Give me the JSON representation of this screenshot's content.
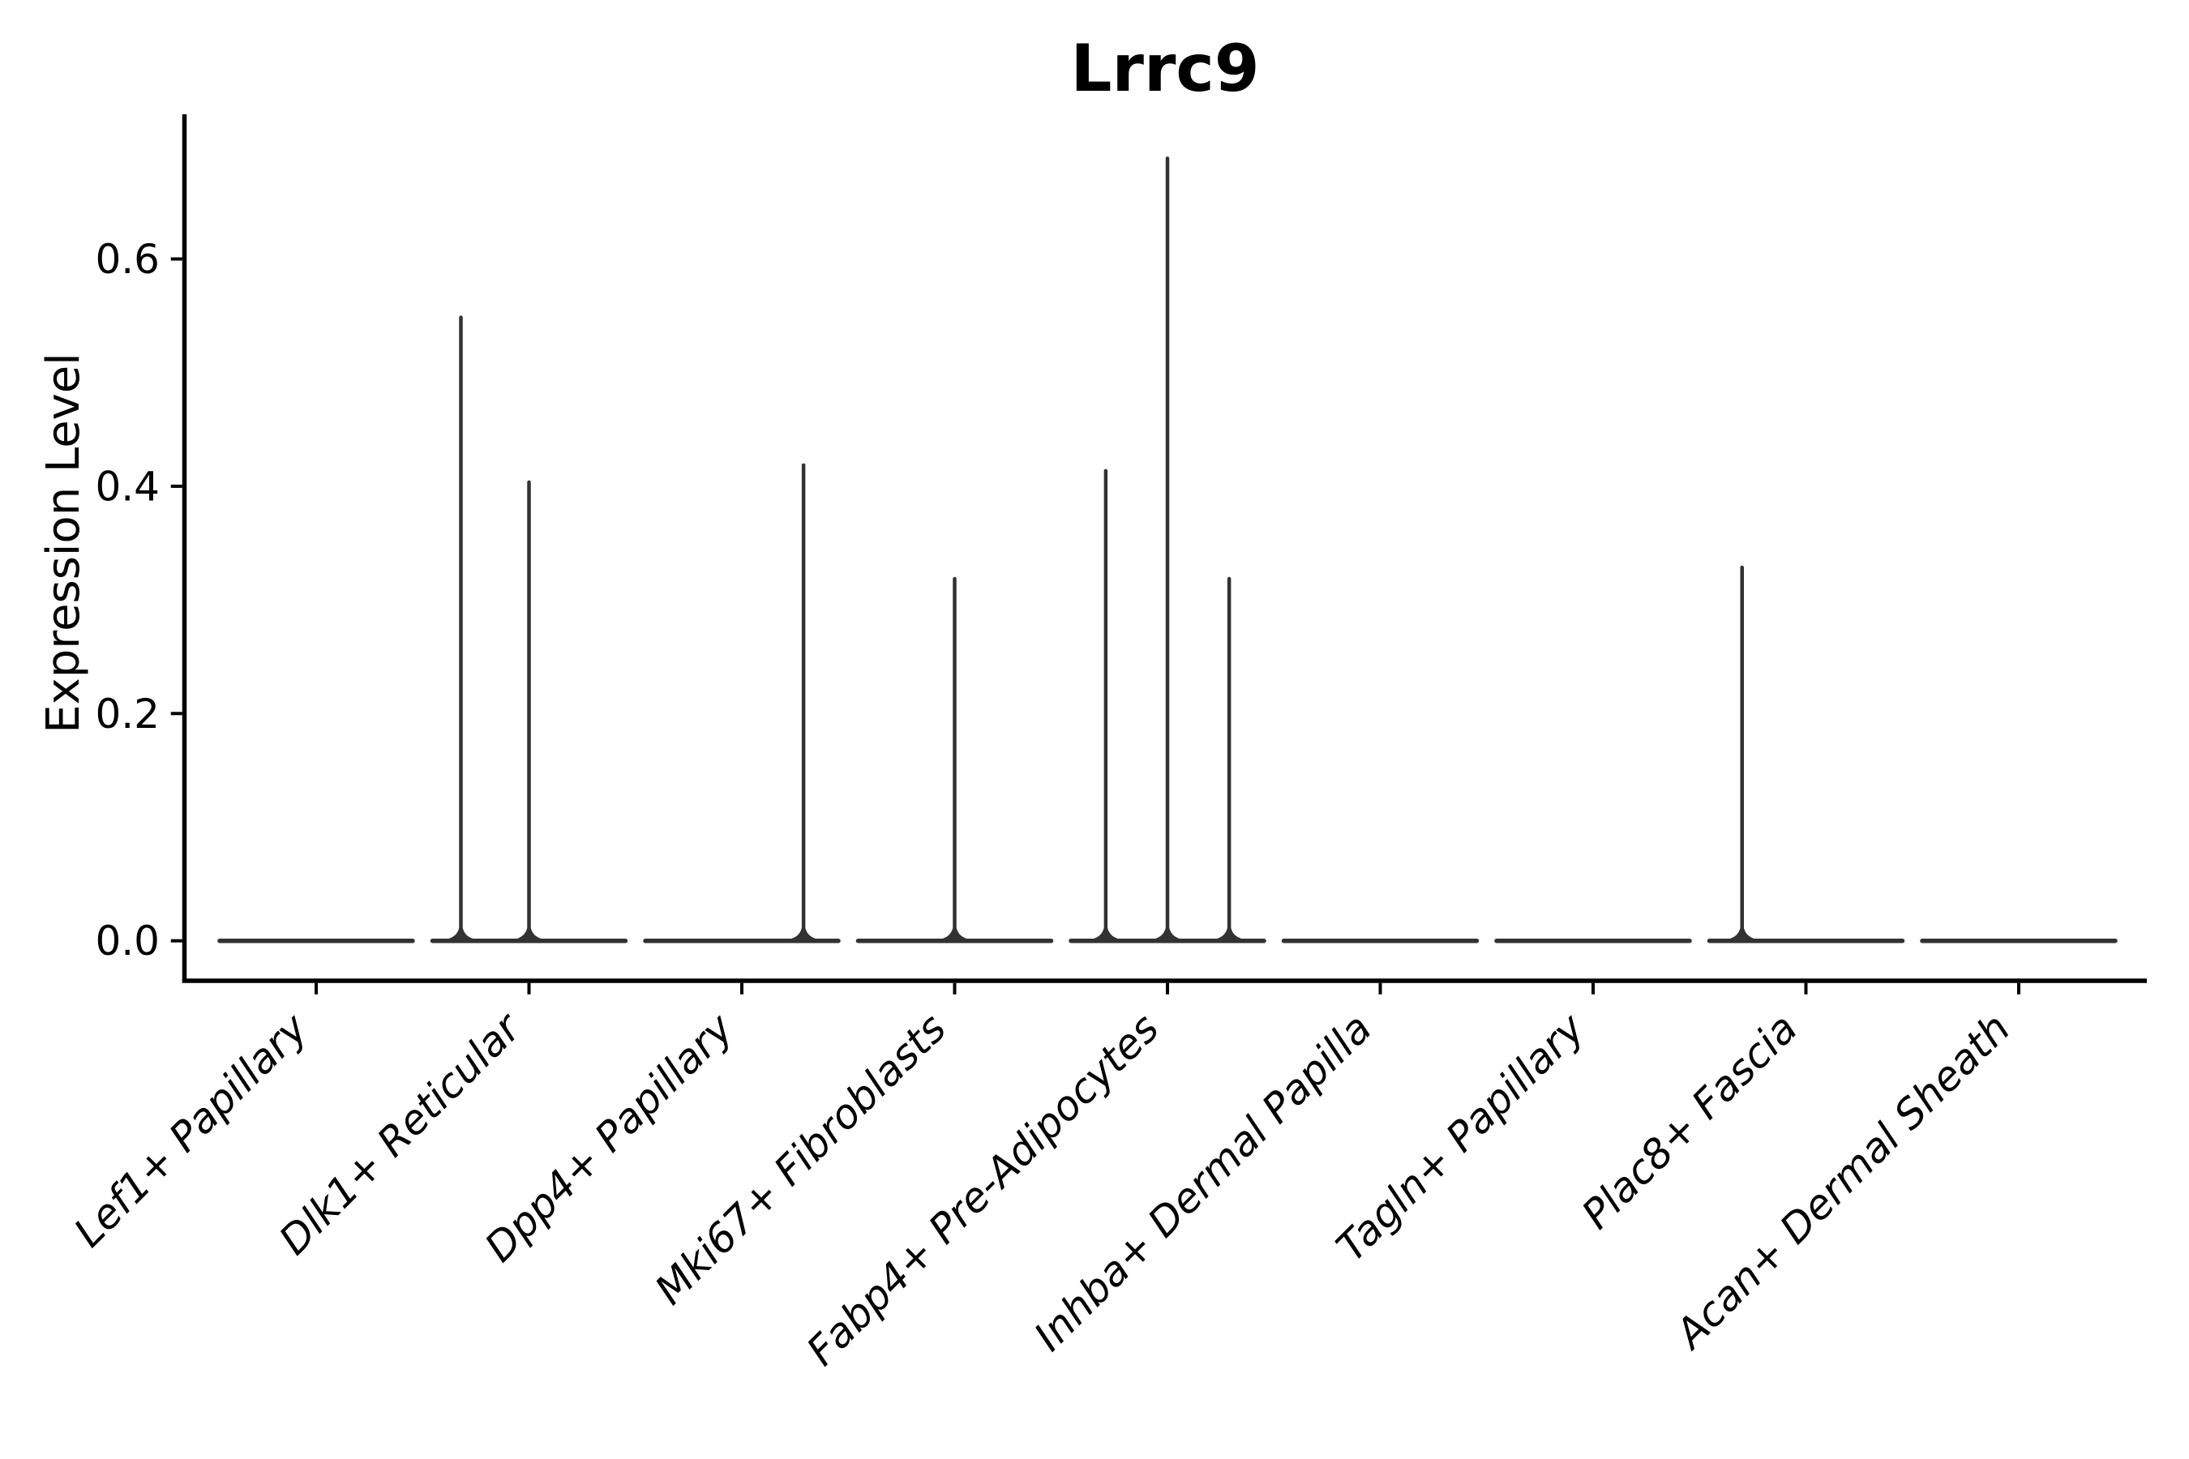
{
  "chart_data": {
    "type": "violin",
    "title": "Lrrc9",
    "xlabel": "",
    "ylabel": "Expression Level",
    "yticks": [
      0.0,
      0.2,
      0.4,
      0.6
    ],
    "ytick_labels": [
      "0.0",
      "0.2",
      "0.4",
      "0.6"
    ],
    "ylim": [
      -0.035,
      0.727
    ],
    "grid": false,
    "legend_position": "none",
    "violin_total_width": 0.9,
    "baseline_value": 0.0,
    "categories": [
      "Lef1+ Papillary",
      "Dlk1+ Reticular",
      "Dpp4+ Papillary",
      "Mki67+ Fibroblasts",
      "Fabp4+ Pre-Adipocytes",
      "Inhba+ Dermal Papilla",
      "Tagln+ Papillary",
      "Plac8+ Fascia",
      "Acan+ Dermal Sheath"
    ],
    "violins": [
      {
        "category": "Lef1+ Papillary",
        "spikes": []
      },
      {
        "category": "Dlk1+ Reticular",
        "spikes": [
          {
            "offset": -0.32,
            "max": 0.55
          },
          {
            "offset": 0.0,
            "max": 0.405
          }
        ]
      },
      {
        "category": "Dpp4+ Papillary",
        "spikes": [
          {
            "offset": 0.29,
            "max": 0.42
          }
        ]
      },
      {
        "category": "Mki67+ Fibroblasts",
        "spikes": [
          {
            "offset": 0.0,
            "max": 0.32
          }
        ]
      },
      {
        "category": "Fabp4+ Pre-Adipocytes",
        "spikes": [
          {
            "offset": -0.29,
            "max": 0.415
          },
          {
            "offset": 0.0,
            "max": 0.69
          },
          {
            "offset": 0.29,
            "max": 0.32
          }
        ]
      },
      {
        "category": "Inhba+ Dermal Papilla",
        "spikes": []
      },
      {
        "category": "Tagln+ Papillary",
        "spikes": []
      },
      {
        "category": "Plac8+ Fascia",
        "spikes": [
          {
            "offset": -0.3,
            "max": 0.33
          }
        ]
      },
      {
        "category": "Acan+ Dermal Sheath",
        "spikes": []
      }
    ],
    "colors": {
      "violin_stroke": "#323232",
      "axis": "#000000",
      "text": "#000000",
      "background": "#ffffff"
    }
  }
}
